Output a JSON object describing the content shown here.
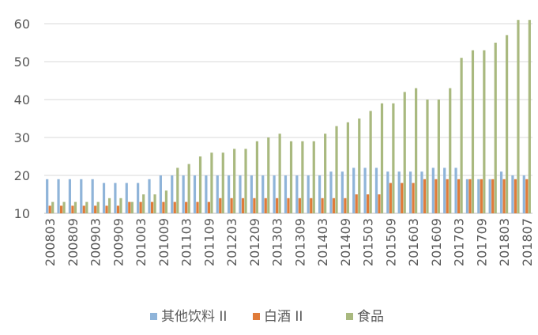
{
  "chart_data": {
    "type": "bar",
    "title": "",
    "xlabel": "",
    "ylabel": "",
    "ylim": [
      10,
      60
    ],
    "yticks": [
      10,
      20,
      30,
      40,
      50,
      60
    ],
    "grid": true,
    "legend_position": "bottom",
    "categories": [
      "200803",
      "200806",
      "200809",
      "200812",
      "200903",
      "200906",
      "200909",
      "200912",
      "201003",
      "201006",
      "201009",
      "201012",
      "201103",
      "201106",
      "201109",
      "201112",
      "201203",
      "201206",
      "201209",
      "201212",
      "201303",
      "201306",
      "201309",
      "201312",
      "201403",
      "201406",
      "201409",
      "201412",
      "201503",
      "201506",
      "201509",
      "201512",
      "201603",
      "201606",
      "201609",
      "201612",
      "201703",
      "201706",
      "201709",
      "201712",
      "201803",
      "201806",
      "201807"
    ],
    "tick_labels": [
      "200803",
      "200809",
      "200903",
      "200909",
      "201003",
      "201009",
      "201103",
      "201109",
      "201203",
      "201209",
      "201303",
      "201309",
      "201403",
      "201409",
      "201503",
      "201509",
      "201603",
      "201609",
      "201703",
      "201709",
      "201803",
      "201807"
    ],
    "series": [
      {
        "name": "其他饮料 II",
        "color": "#8FB4D9",
        "values": [
          19,
          19,
          19,
          19,
          19,
          18,
          18,
          18,
          18,
          19,
          20,
          20,
          20,
          20,
          20,
          20,
          20,
          20,
          20,
          20,
          20,
          20,
          20,
          20,
          20,
          21,
          21,
          22,
          22,
          22,
          21,
          21,
          21,
          21,
          22,
          22,
          22,
          19,
          19,
          19,
          21,
          20,
          20
        ]
      },
      {
        "name": "白酒 II",
        "color": "#E07B39",
        "values": [
          12,
          12,
          12,
          12,
          12,
          12,
          12,
          13,
          13,
          13,
          13,
          13,
          13,
          13,
          13,
          14,
          14,
          14,
          14,
          14,
          14,
          14,
          14,
          14,
          14,
          14,
          14,
          15,
          15,
          15,
          18,
          18,
          18,
          19,
          19,
          19,
          19,
          19,
          19,
          19,
          19,
          19,
          19
        ]
      },
      {
        "name": "食品",
        "color": "#A9B97F",
        "values": [
          13,
          13,
          13,
          13,
          13,
          14,
          14,
          13,
          15,
          15,
          16,
          22,
          23,
          25,
          26,
          26,
          27,
          27,
          29,
          30,
          31,
          29,
          29,
          29,
          31,
          33,
          34,
          35,
          37,
          39,
          39,
          42,
          43,
          40,
          40,
          43,
          51,
          53,
          53,
          55,
          57,
          61,
          61
        ]
      }
    ]
  }
}
